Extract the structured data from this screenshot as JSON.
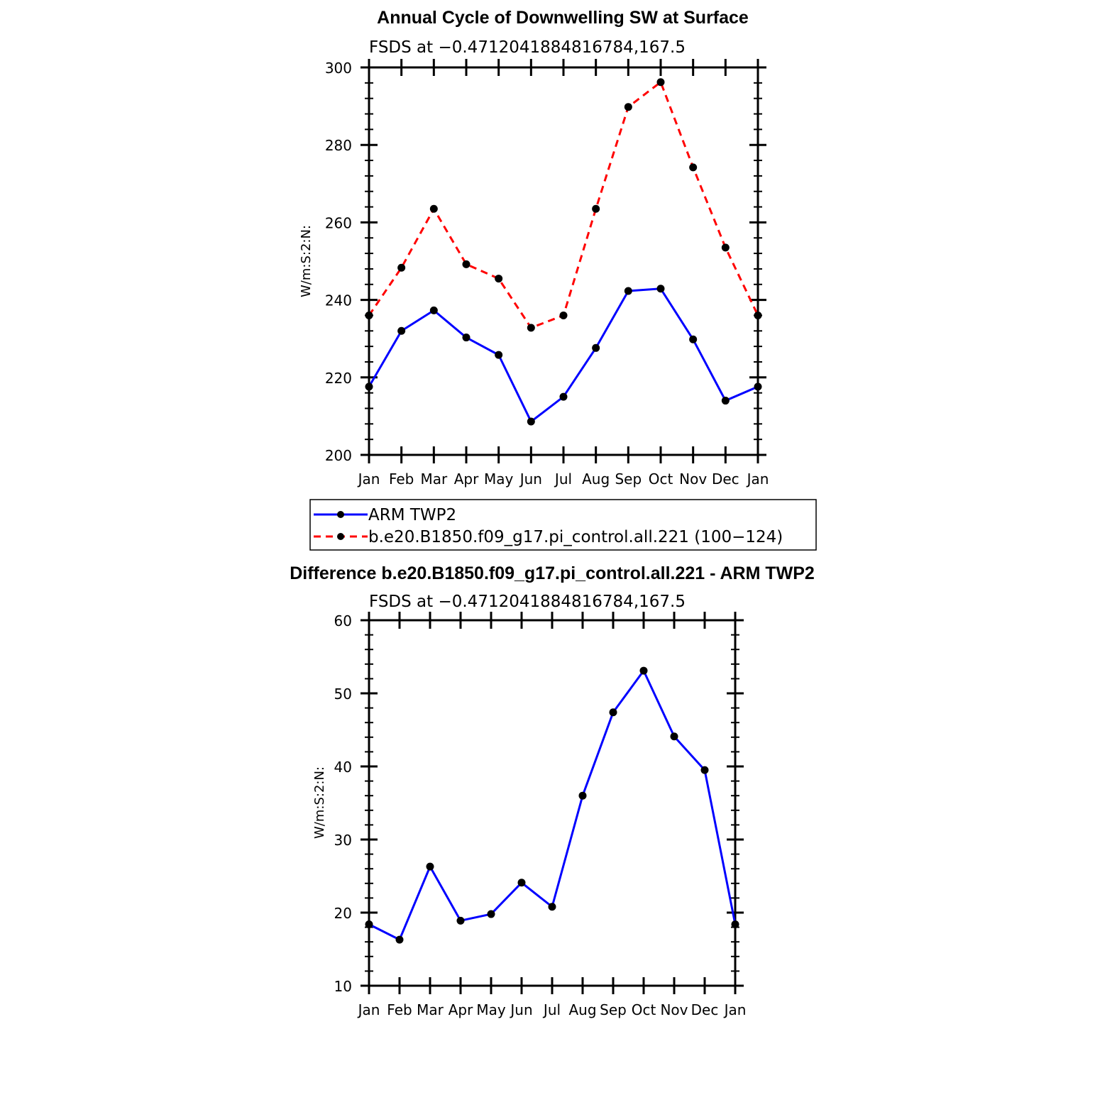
{
  "chart_data": [
    {
      "type": "line",
      "title": "Annual Cycle of Downwelling SW at Surface",
      "subtitle": "FSDS at −0.4712041884816784,167.5",
      "xlabel": "",
      "ylabel": "W/m:S:2:N:",
      "categories": [
        "Jan",
        "Feb",
        "Mar",
        "Apr",
        "May",
        "Jun",
        "Jul",
        "Aug",
        "Sep",
        "Oct",
        "Nov",
        "Dec",
        "Jan"
      ],
      "yticks": [
        200,
        220,
        240,
        260,
        280,
        300
      ],
      "ylim": [
        200,
        300
      ],
      "series": [
        {
          "name": "ARM TWP2",
          "color": "#0000ff",
          "dash": "solid",
          "values": [
            217.6,
            232.0,
            237.3,
            230.3,
            225.8,
            208.6,
            215.0,
            227.6,
            242.3,
            242.9,
            229.8,
            214.0,
            217.6
          ]
        },
        {
          "name": "b.e20.B1850.f09_g17.pi_control.all.221 (100−124)",
          "color": "#ff0000",
          "dash": "dashed",
          "values": [
            236.0,
            248.3,
            263.5,
            249.2,
            245.5,
            232.8,
            236.0,
            263.5,
            289.8,
            296.2,
            274.2,
            253.5,
            236.0
          ]
        }
      ]
    },
    {
      "type": "line",
      "title": "Difference b.e20.B1850.f09_g17.pi_control.all.221 - ARM TWP2",
      "subtitle": "FSDS at −0.4712041884816784,167.5",
      "xlabel": "",
      "ylabel": "W/m:S:2:N:",
      "categories": [
        "Jan",
        "Feb",
        "Mar",
        "Apr",
        "May",
        "Jun",
        "Jul",
        "Aug",
        "Sep",
        "Oct",
        "Nov",
        "Dec",
        "Jan"
      ],
      "yticks": [
        10,
        20,
        30,
        40,
        50,
        60
      ],
      "ylim": [
        10,
        60
      ],
      "series": [
        {
          "name": "Difference",
          "color": "#0000ff",
          "dash": "solid",
          "values": [
            18.4,
            16.3,
            26.3,
            18.9,
            19.8,
            24.1,
            20.8,
            36.0,
            47.4,
            53.1,
            44.1,
            39.5,
            18.4
          ]
        }
      ]
    }
  ]
}
